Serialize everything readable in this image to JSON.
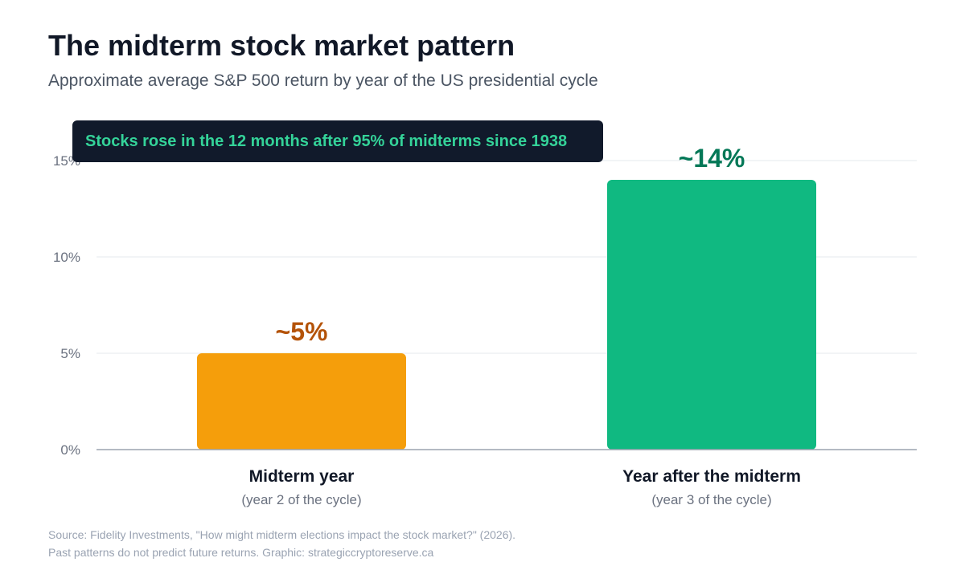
{
  "title": "The midterm stock market pattern",
  "subtitle": "Approximate average S&P 500 return by year of the US presidential cycle",
  "callout": "Stocks rose in the 12 months after 95% of midterms since 1938",
  "source": {
    "line1": "Source: Fidelity Investments, \"How might midterm elections impact the stock market?\" (2026).",
    "line2": "Past patterns do not predict future returns. Graphic: strategiccryptoreserve.ca"
  },
  "chart_data": {
    "type": "bar",
    "title": "The midterm stock market pattern",
    "subtitle": "Approximate average S&P 500 return by year of the US presidential cycle",
    "categories": [
      "Midterm year",
      "Year after the midterm"
    ],
    "category_sublabels": [
      "(year 2 of the cycle)",
      "(year 3 of the cycle)"
    ],
    "values": [
      5,
      14
    ],
    "value_labels": [
      "~5%",
      "~14%"
    ],
    "bar_colors": [
      "#f59e0b",
      "#10b981"
    ],
    "label_colors": [
      "#b45309",
      "#047857"
    ],
    "ylim": [
      0,
      15
    ],
    "yticks": [
      0,
      5,
      10,
      15
    ],
    "ytick_labels": [
      "0%",
      "5%",
      "10%",
      "15%"
    ],
    "grid": true
  }
}
